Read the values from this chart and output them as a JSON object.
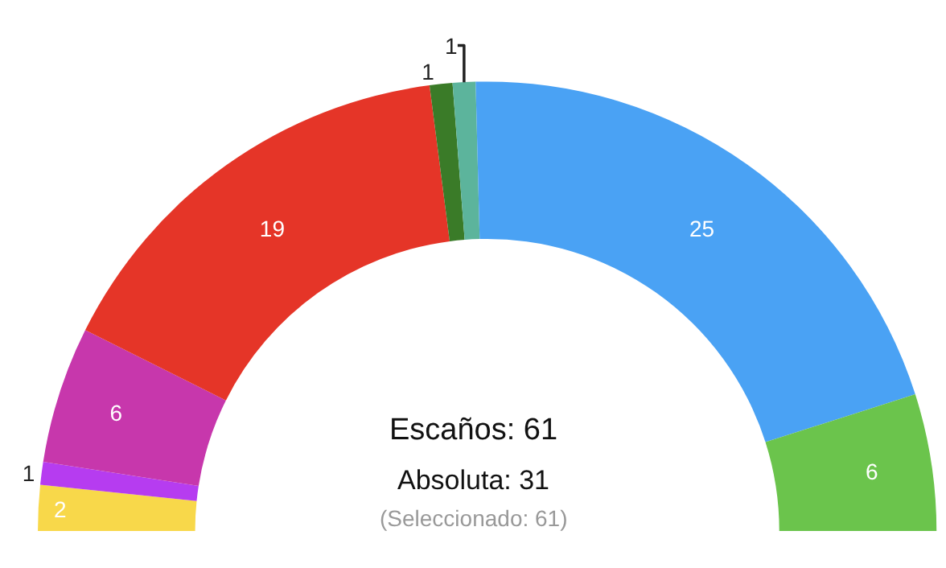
{
  "chart_data": {
    "type": "donut",
    "categories": [
      null,
      null,
      null,
      null,
      null,
      null,
      null,
      null
    ],
    "values": [
      2,
      1,
      6,
      19,
      1,
      1,
      25,
      6
    ],
    "colors": [
      "#f8d84a",
      "#b63cf0",
      "#c737ac",
      "#e53528",
      "#3a7b28",
      "#5cb49c",
      "#4aa2f4",
      "#6bc44c"
    ],
    "data_labels": true,
    "annotations": [
      "Escaños: 61",
      "Absoluta: 31",
      "(Seleccionado: 61)"
    ]
  }
}
